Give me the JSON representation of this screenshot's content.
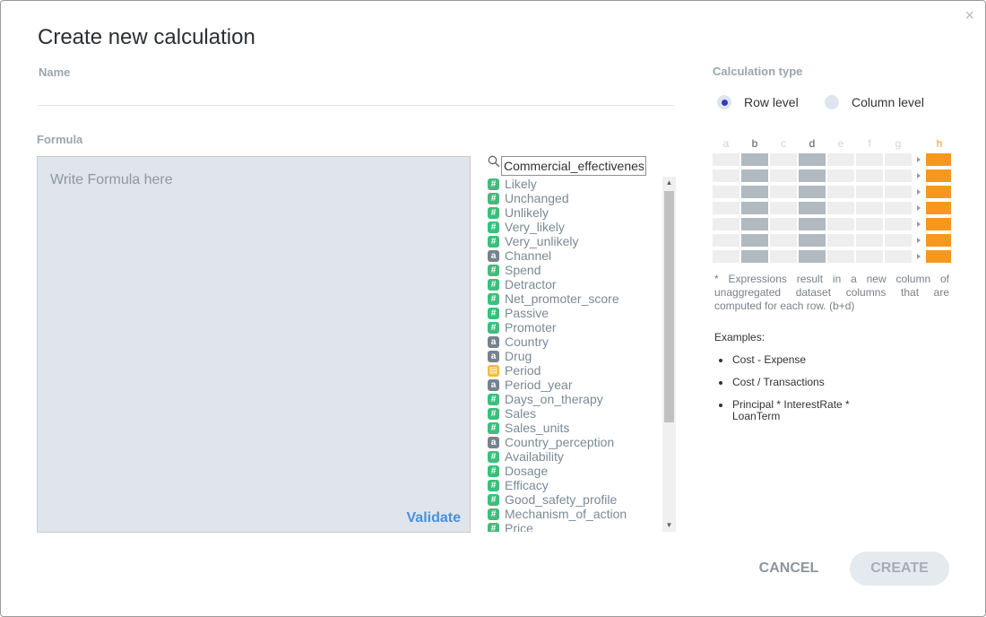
{
  "dialog": {
    "title": "Create new calculation",
    "close_glyph": "×"
  },
  "name_field": {
    "label": "Name",
    "value": ""
  },
  "formula": {
    "label": "Formula",
    "placeholder": "Write Formula here",
    "validate_label": "Validate"
  },
  "field_search": {
    "value": "Commercial_effectivenes"
  },
  "fields": [
    {
      "name": "Likely",
      "type": "number",
      "badge": "#"
    },
    {
      "name": "Unchanged",
      "type": "number",
      "badge": "#"
    },
    {
      "name": "Unlikely",
      "type": "number",
      "badge": "#"
    },
    {
      "name": "Very_likely",
      "type": "number",
      "badge": "#"
    },
    {
      "name": "Very_unlikely",
      "type": "number",
      "badge": "#"
    },
    {
      "name": "Channel",
      "type": "string",
      "badge": "a"
    },
    {
      "name": "Spend",
      "type": "number",
      "badge": "#"
    },
    {
      "name": "Detractor",
      "type": "number",
      "badge": "#"
    },
    {
      "name": "Net_promoter_score",
      "type": "number",
      "badge": "#"
    },
    {
      "name": "Passive",
      "type": "number",
      "badge": "#"
    },
    {
      "name": "Promoter",
      "type": "number",
      "badge": "#"
    },
    {
      "name": "Country",
      "type": "string",
      "badge": "a"
    },
    {
      "name": "Drug",
      "type": "string",
      "badge": "a"
    },
    {
      "name": "Period",
      "type": "date",
      "badge": "▤"
    },
    {
      "name": "Period_year",
      "type": "string",
      "badge": "a"
    },
    {
      "name": "Days_on_therapy",
      "type": "number",
      "badge": "#"
    },
    {
      "name": "Sales",
      "type": "number",
      "badge": "#"
    },
    {
      "name": "Sales_units",
      "type": "number",
      "badge": "#"
    },
    {
      "name": "Country_perception",
      "type": "string",
      "badge": "a"
    },
    {
      "name": "Availability",
      "type": "number",
      "badge": "#"
    },
    {
      "name": "Dosage",
      "type": "number",
      "badge": "#"
    },
    {
      "name": "Efficacy",
      "type": "number",
      "badge": "#"
    },
    {
      "name": "Good_safety_profile",
      "type": "number",
      "badge": "#"
    },
    {
      "name": "Mechanism_of_action",
      "type": "number",
      "badge": "#"
    },
    {
      "name": "Price",
      "type": "number",
      "badge": "#"
    }
  ],
  "calculation_type": {
    "label": "Calculation type",
    "options": [
      {
        "label": "Row level",
        "selected": true
      },
      {
        "label": "Column level",
        "selected": false
      }
    ]
  },
  "illustration": {
    "columns": [
      "a",
      "b",
      "c",
      "d",
      "e",
      "f",
      "g",
      "h"
    ],
    "highlighted_columns": [
      "b",
      "d"
    ],
    "result_column": "h",
    "row_count": 7,
    "colors": {
      "cell": "#eeeeee",
      "highlight": "#b0bac0",
      "result": "#f7981d"
    }
  },
  "description": "* Expressions result in a new column of unaggregated dataset columns that are computed for each row. (b+d)",
  "examples": {
    "title": "Examples:",
    "items": [
      "Cost - Expense",
      "Cost / Transactions",
      "Principal * InterestRate * LoanTerm"
    ]
  },
  "buttons": {
    "cancel": "CANCEL",
    "create": "CREATE"
  },
  "colors": {
    "accent": "#4a90d9",
    "number_badge": "#3ebd7c",
    "string_badge": "#77838c",
    "date_badge": "#f5b838",
    "formula_bg": "#dfe5ea"
  }
}
